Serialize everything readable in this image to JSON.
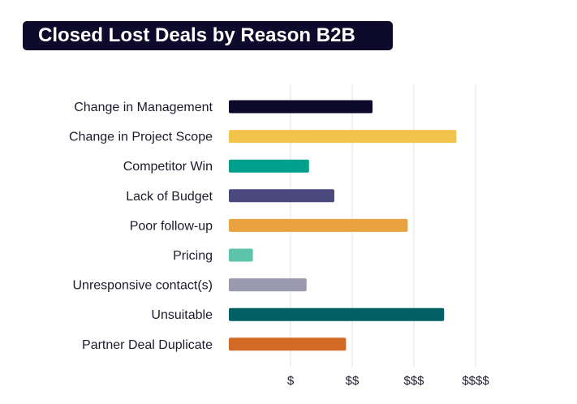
{
  "chart_data": {
    "type": "bar",
    "orientation": "horizontal",
    "title": "Closed Lost Deals by Reason B2B",
    "categories": [
      "Change in Management",
      "Change in Project Scope",
      "Competitor Win",
      "Lack of Budget",
      "Poor follow-up",
      "Pricing",
      "Unresponsive contact(s)",
      "Unsuitable",
      "Partner Deal Duplicate"
    ],
    "values": [
      2.33,
      3.69,
      1.3,
      1.71,
      2.9,
      0.39,
      1.26,
      3.49,
      1.9
    ],
    "colors": [
      "#0d0a2c",
      "#f2c44c",
      "#00a08c",
      "#4a4a7e",
      "#e8a23e",
      "#5dc4ab",
      "#9a99ad",
      "#006064",
      "#d06a24"
    ],
    "x_tick_values": [
      0,
      1,
      2,
      3,
      4
    ],
    "x_tick_labels": [
      "",
      "$",
      "$$",
      "$$$",
      "$$$$"
    ],
    "xlim": [
      0,
      4
    ],
    "grid": true
  }
}
